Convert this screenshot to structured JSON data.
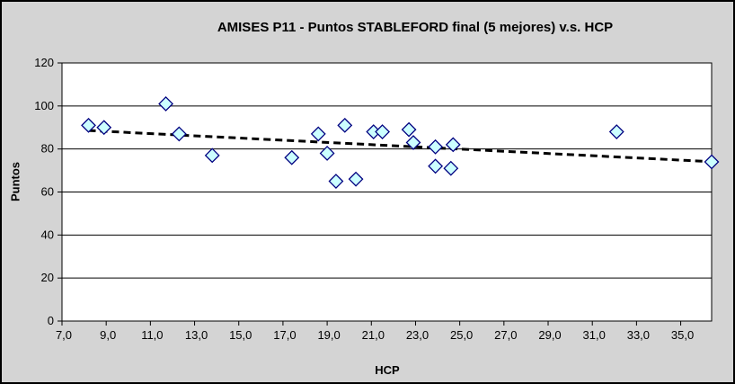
{
  "chart_data": {
    "type": "scatter",
    "title": "AMISES P11 - Puntos STABLEFORD final (5 mejores) v.s. HCP",
    "xlabel": "HCP",
    "ylabel": "Puntos",
    "xlim": [
      7,
      36.4
    ],
    "ylim": [
      0,
      120
    ],
    "x_ticks": [
      7,
      9,
      11,
      13,
      15,
      17,
      19,
      21,
      23,
      25,
      27,
      29,
      31,
      33,
      35
    ],
    "x_tick_labels": [
      "7,0",
      "9,0",
      "11,0",
      "13,0",
      "15,0",
      "17,0",
      "19,0",
      "21,0",
      "23,0",
      "25,0",
      "27,0",
      "29,0",
      "31,0",
      "33,0",
      "35,0"
    ],
    "y_ticks": [
      0,
      20,
      40,
      60,
      80,
      100,
      120
    ],
    "grid": "horizontal",
    "legend": "none",
    "points": [
      [
        8.2,
        91
      ],
      [
        8.9,
        90
      ],
      [
        11.7,
        101
      ],
      [
        12.3,
        87
      ],
      [
        13.8,
        77
      ],
      [
        17.4,
        76
      ],
      [
        18.6,
        87
      ],
      [
        19.0,
        78
      ],
      [
        19.4,
        65
      ],
      [
        19.8,
        91
      ],
      [
        20.3,
        66
      ],
      [
        21.1,
        88
      ],
      [
        21.5,
        88
      ],
      [
        22.7,
        89
      ],
      [
        22.9,
        83
      ],
      [
        23.9,
        81
      ],
      [
        23.9,
        72
      ],
      [
        24.6,
        71
      ],
      [
        24.7,
        82
      ],
      [
        32.1,
        88
      ],
      [
        36.4,
        74
      ]
    ],
    "trendline": {
      "style": "dashed",
      "x1": 8.2,
      "y1": 88.6,
      "x2": 36.4,
      "y2": 74.1
    },
    "marker": {
      "shape": "diamond",
      "fill": "#ccffff",
      "stroke": "#000080"
    },
    "colors": {
      "chart_bg": "#d4d4d4",
      "plot_bg": "#ffffff",
      "line": "#000000",
      "text": "#000000"
    }
  }
}
